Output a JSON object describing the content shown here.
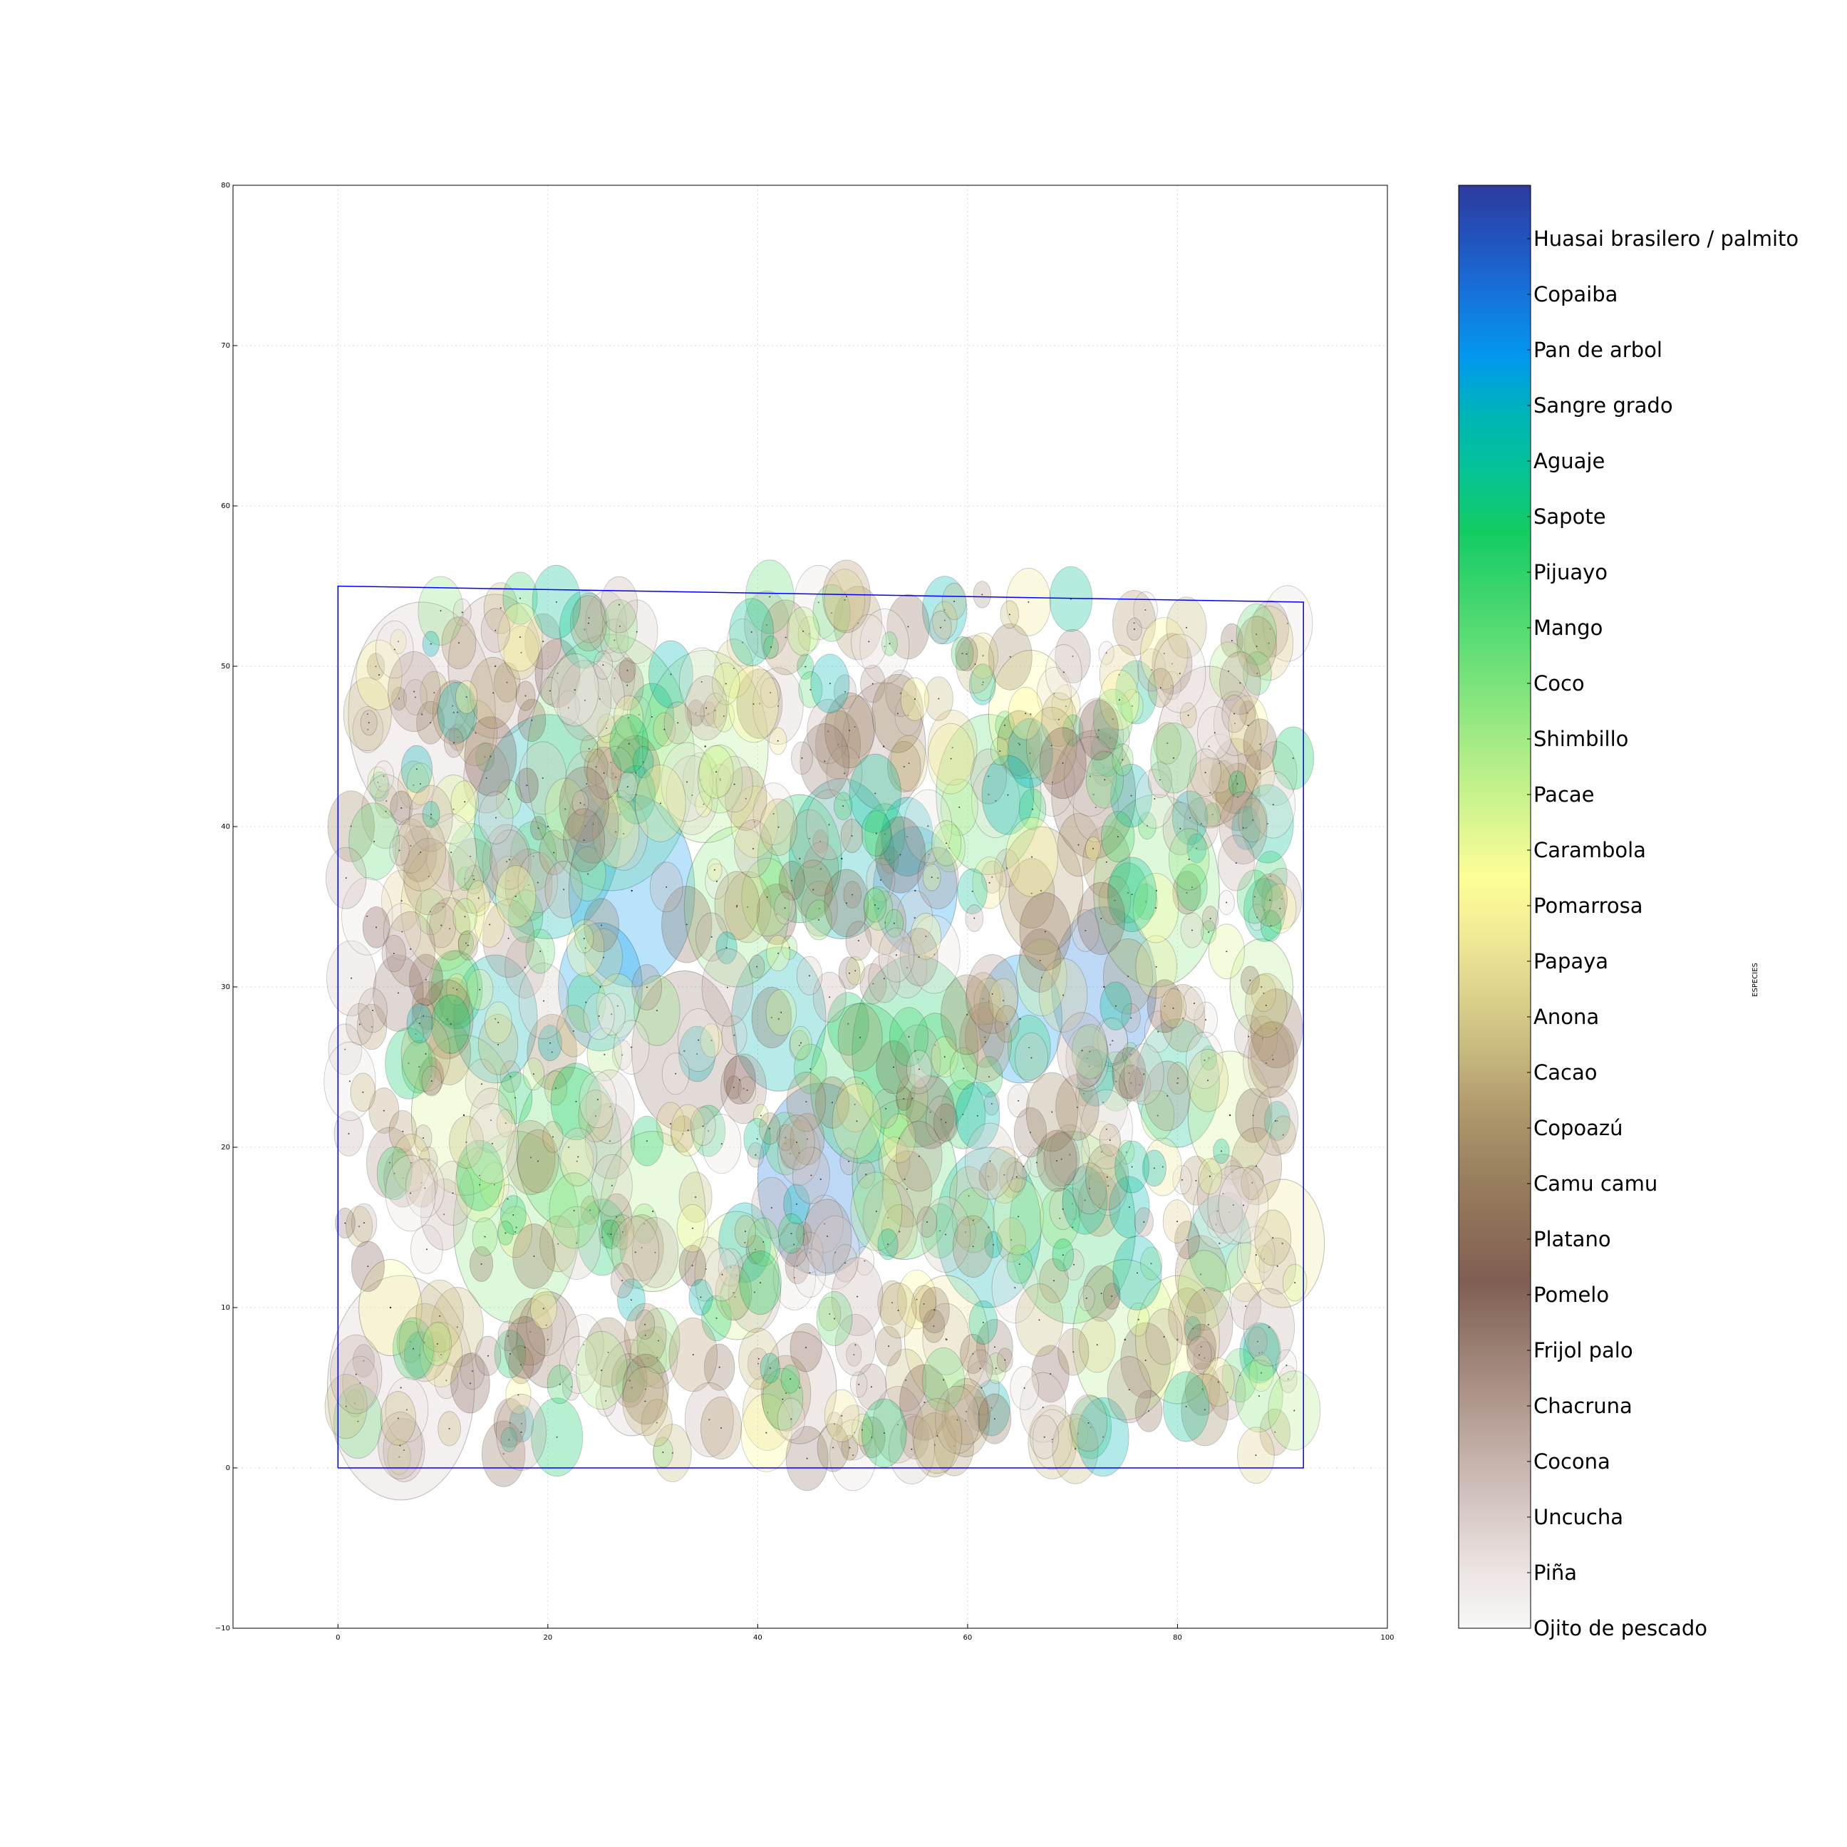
{
  "chart_data": {
    "type": "scatter",
    "title": "",
    "xlabel": "",
    "ylabel": "",
    "xlim": [
      -10,
      100
    ],
    "ylim": [
      -10,
      80
    ],
    "xticks": [
      "0",
      "20",
      "40",
      "60",
      "80",
      "100"
    ],
    "xtick_values": [
      0,
      20,
      40,
      60,
      80,
      100
    ],
    "yticks": [
      "−10",
      "0",
      "10",
      "20",
      "30",
      "40",
      "50",
      "60",
      "70",
      "80"
    ],
    "ytick_values": [
      -10,
      0,
      10,
      20,
      30,
      40,
      50,
      60,
      70,
      80
    ],
    "grid": true,
    "plot_boundary": [
      [
        0,
        0
      ],
      [
        0,
        55
      ],
      [
        92,
        54
      ],
      [
        92,
        0
      ],
      [
        0,
        0
      ]
    ],
    "boundary_color": "#0000ff",
    "colorbar": {
      "label": "ESPECIES",
      "species": [
        "Ojito de pescado",
        "Piña",
        "Uncucha",
        "Cocona",
        "Chacruna",
        "Frijol palo",
        "Pomelo",
        "Platano",
        "Camu camu",
        "Copoazú",
        "Cacao",
        "Anona",
        "Papaya",
        "Pomarrosa",
        "Carambola",
        "Pacae",
        "Shimbillo",
        "Coco",
        "Mango",
        "Pijuayo",
        "Sapote",
        "Aguaje",
        "Sangre grado",
        "Pan de arbol",
        "Copaiba",
        "Huasai brasilero / palmito"
      ],
      "colors": [
        "#f7f7f7",
        "#ece4e2",
        "#d8cac5",
        "#c4b0a8",
        "#ae958b",
        "#967b6e",
        "#805e54",
        "#8e7058",
        "#9b8360",
        "#b0996c",
        "#c8b97e",
        "#ddd28c",
        "#f0ea95",
        "#fefe98",
        "#d9f590",
        "#b2ee89",
        "#8ae67f",
        "#62de76",
        "#3ad46d",
        "#12cc62",
        "#06c394",
        "#00b5b5",
        "#0199ef",
        "#1477dd",
        "#2255c0",
        "#2c3b9c"
      ]
    },
    "trees": [
      {
        "x": 8,
        "y": 47,
        "r": 7,
        "s": 2
      },
      {
        "x": 6,
        "y": 5,
        "r": 7,
        "s": 2
      },
      {
        "x": 15,
        "y": 50,
        "r": 4.5,
        "s": 3
      },
      {
        "x": 20,
        "y": 40,
        "r": 7,
        "s": 21
      },
      {
        "x": 26,
        "y": 44,
        "r": 8,
        "s": 16
      },
      {
        "x": 35,
        "y": 45,
        "r": 6,
        "s": 15
      },
      {
        "x": 28,
        "y": 36,
        "r": 6,
        "s": 22
      },
      {
        "x": 42,
        "y": 28,
        "r": 4.5,
        "s": 21
      },
      {
        "x": 33,
        "y": 26,
        "r": 5,
        "s": 5
      },
      {
        "x": 46,
        "y": 18,
        "r": 6,
        "s": 23
      },
      {
        "x": 50,
        "y": 24,
        "r": 5,
        "s": 18
      },
      {
        "x": 55,
        "y": 26,
        "r": 6,
        "s": 19
      },
      {
        "x": 48,
        "y": 38,
        "r": 5,
        "s": 21
      },
      {
        "x": 55,
        "y": 36,
        "r": 4,
        "s": 22
      },
      {
        "x": 62,
        "y": 42,
        "r": 5,
        "s": 17
      },
      {
        "x": 66,
        "y": 47,
        "r": 4,
        "s": 13
      },
      {
        "x": 73,
        "y": 30,
        "r": 5,
        "s": 23
      },
      {
        "x": 78,
        "y": 36,
        "r": 6,
        "s": 16
      },
      {
        "x": 80,
        "y": 24,
        "r": 4,
        "s": 20
      },
      {
        "x": 70,
        "y": 15,
        "r": 6,
        "s": 18
      },
      {
        "x": 75,
        "y": 8,
        "r": 5,
        "s": 15
      },
      {
        "x": 80,
        "y": 8,
        "r": 4,
        "s": 13
      },
      {
        "x": 83,
        "y": 45,
        "r": 5,
        "s": 3
      },
      {
        "x": 52,
        "y": 45,
        "r": 4,
        "s": 4
      },
      {
        "x": 17,
        "y": 15,
        "r": 6,
        "s": 16
      },
      {
        "x": 12,
        "y": 22,
        "r": 5,
        "s": 14
      },
      {
        "x": 22,
        "y": 20,
        "r": 5,
        "s": 17
      },
      {
        "x": 30,
        "y": 16,
        "r": 5,
        "s": 15
      },
      {
        "x": 38,
        "y": 12,
        "r": 4,
        "s": 14
      },
      {
        "x": 44,
        "y": 5,
        "r": 3.5,
        "s": 3
      },
      {
        "x": 28,
        "y": 5,
        "r": 3,
        "s": 2
      },
      {
        "x": 62,
        "y": 15,
        "r": 5,
        "s": 21
      },
      {
        "x": 65,
        "y": 28,
        "r": 4,
        "s": 22
      },
      {
        "x": 88,
        "y": 30,
        "r": 3,
        "s": 15
      },
      {
        "x": 90,
        "y": 14,
        "r": 4,
        "s": 12
      },
      {
        "x": 10,
        "y": 35,
        "r": 4,
        "s": 12
      },
      {
        "x": 5,
        "y": 10,
        "r": 3,
        "s": 13
      },
      {
        "x": 38,
        "y": 35,
        "r": 5,
        "s": 16
      },
      {
        "x": 44,
        "y": 38,
        "r": 4,
        "s": 19
      },
      {
        "x": 58,
        "y": 8,
        "r": 4,
        "s": 12
      },
      {
        "x": 54,
        "y": 18,
        "r": 5,
        "s": 17
      },
      {
        "x": 85,
        "y": 22,
        "r": 4,
        "s": 14
      },
      {
        "x": 67,
        "y": 36,
        "r": 4,
        "s": 9
      },
      {
        "x": 84,
        "y": 14,
        "r": 3,
        "s": 20
      },
      {
        "x": 72,
        "y": 42,
        "r": 4,
        "s": 7
      },
      {
        "x": 25,
        "y": 30,
        "r": 4,
        "s": 22
      },
      {
        "x": 15,
        "y": 28,
        "r": 4,
        "s": 21
      },
      {
        "x": 20,
        "y": 8,
        "r": 3,
        "s": 7
      }
    ]
  }
}
